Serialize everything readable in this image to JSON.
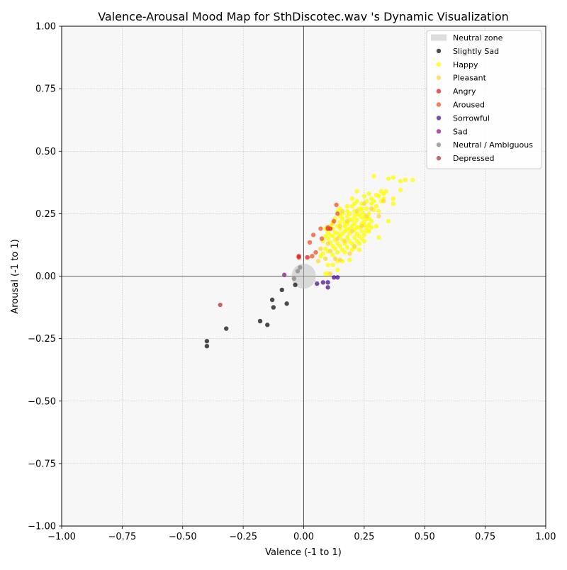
{
  "chart_data": {
    "type": "scatter",
    "title": "Valence-Arousal Mood Map for SthDiscotec.wav 's Dynamic Visualization",
    "xlabel": "Valence (-1 to 1)",
    "ylabel": "Arousal (-1 to 1)",
    "xlim": [
      -1,
      1
    ],
    "ylim": [
      -1,
      1
    ],
    "xticks": [
      -1.0,
      -0.75,
      -0.5,
      -0.25,
      0.0,
      0.25,
      0.5,
      0.75,
      1.0
    ],
    "yticks": [
      -1.0,
      -0.75,
      -0.5,
      -0.25,
      0.0,
      0.25,
      0.5,
      0.75,
      1.0
    ],
    "xtick_labels": [
      "−1.00",
      "−0.75",
      "−0.50",
      "−0.25",
      "0.00",
      "0.25",
      "0.50",
      "0.75",
      "1.00"
    ],
    "ytick_labels": [
      "−1.00",
      "−0.75",
      "−0.50",
      "−0.25",
      "0.00",
      "0.25",
      "0.50",
      "0.75",
      "1.00"
    ],
    "grid": true,
    "legend_position": "top-right",
    "neutral_zone": {
      "label": "Neutral zone",
      "center": [
        0,
        0
      ],
      "radius": 0.05,
      "color": "#bbbbbb"
    },
    "series": [
      {
        "name": "Slightly Sad",
        "color": "#111111",
        "points": [
          [
            -0.4,
            -0.26
          ],
          [
            -0.4,
            -0.28
          ],
          [
            -0.32,
            -0.21
          ],
          [
            -0.18,
            -0.18
          ],
          [
            -0.15,
            -0.195
          ],
          [
            -0.13,
            -0.095
          ],
          [
            -0.125,
            -0.125
          ],
          [
            -0.09,
            -0.055
          ],
          [
            -0.07,
            -0.11
          ],
          [
            -0.035,
            -0.035
          ]
        ]
      },
      {
        "name": "Happy",
        "color": "#ffff00",
        "points": [
          [
            0.29,
            0.4
          ],
          [
            0.37,
            0.395
          ],
          [
            0.35,
            0.39
          ],
          [
            0.42,
            0.385
          ],
          [
            0.45,
            0.385
          ],
          [
            0.4,
            0.38
          ],
          [
            0.4,
            0.345
          ],
          [
            0.37,
            0.31
          ],
          [
            0.37,
            0.29
          ],
          [
            0.32,
            0.34
          ],
          [
            0.33,
            0.33
          ],
          [
            0.34,
            0.34
          ],
          [
            0.3,
            0.325
          ],
          [
            0.31,
            0.32
          ],
          [
            0.33,
            0.31
          ],
          [
            0.35,
            0.22
          ],
          [
            0.31,
            0.155
          ],
          [
            0.31,
            0.26
          ],
          [
            0.22,
            0.34
          ],
          [
            0.27,
            0.33
          ],
          [
            0.25,
            0.32
          ],
          [
            0.28,
            0.31
          ],
          [
            0.2,
            0.31
          ],
          [
            0.22,
            0.3
          ],
          [
            0.26,
            0.3
          ],
          [
            0.29,
            0.3
          ],
          [
            0.24,
            0.29
          ],
          [
            0.21,
            0.29
          ],
          [
            0.18,
            0.28
          ],
          [
            0.2,
            0.28
          ],
          [
            0.15,
            0.27
          ],
          [
            0.23,
            0.27
          ],
          [
            0.26,
            0.27
          ],
          [
            0.29,
            0.265
          ],
          [
            0.14,
            0.26
          ],
          [
            0.18,
            0.26
          ],
          [
            0.21,
            0.26
          ],
          [
            0.24,
            0.26
          ],
          [
            0.27,
            0.25
          ],
          [
            0.16,
            0.25
          ],
          [
            0.19,
            0.25
          ],
          [
            0.22,
            0.25
          ],
          [
            0.25,
            0.245
          ],
          [
            0.15,
            0.24
          ],
          [
            0.18,
            0.24
          ],
          [
            0.21,
            0.24
          ],
          [
            0.24,
            0.235
          ],
          [
            0.27,
            0.23
          ],
          [
            0.13,
            0.23
          ],
          [
            0.16,
            0.23
          ],
          [
            0.19,
            0.225
          ],
          [
            0.22,
            0.225
          ],
          [
            0.25,
            0.22
          ],
          [
            0.12,
            0.215
          ],
          [
            0.15,
            0.215
          ],
          [
            0.18,
            0.21
          ],
          [
            0.21,
            0.21
          ],
          [
            0.24,
            0.21
          ],
          [
            0.27,
            0.205
          ],
          [
            0.11,
            0.2
          ],
          [
            0.14,
            0.2
          ],
          [
            0.17,
            0.2
          ],
          [
            0.2,
            0.2
          ],
          [
            0.23,
            0.195
          ],
          [
            0.26,
            0.195
          ],
          [
            0.09,
            0.19
          ],
          [
            0.12,
            0.19
          ],
          [
            0.15,
            0.19
          ],
          [
            0.18,
            0.185
          ],
          [
            0.21,
            0.185
          ],
          [
            0.24,
            0.18
          ],
          [
            0.27,
            0.18
          ],
          [
            0.1,
            0.175
          ],
          [
            0.13,
            0.175
          ],
          [
            0.16,
            0.17
          ],
          [
            0.19,
            0.17
          ],
          [
            0.22,
            0.17
          ],
          [
            0.25,
            0.165
          ],
          [
            0.09,
            0.16
          ],
          [
            0.12,
            0.16
          ],
          [
            0.15,
            0.16
          ],
          [
            0.18,
            0.155
          ],
          [
            0.21,
            0.155
          ],
          [
            0.24,
            0.15
          ],
          [
            0.1,
            0.15
          ],
          [
            0.13,
            0.145
          ],
          [
            0.16,
            0.145
          ],
          [
            0.19,
            0.14
          ],
          [
            0.22,
            0.14
          ],
          [
            0.08,
            0.14
          ],
          [
            0.11,
            0.135
          ],
          [
            0.14,
            0.13
          ],
          [
            0.17,
            0.13
          ],
          [
            0.2,
            0.13
          ],
          [
            0.23,
            0.13
          ],
          [
            0.12,
            0.12
          ],
          [
            0.15,
            0.12
          ],
          [
            0.18,
            0.115
          ],
          [
            0.21,
            0.115
          ],
          [
            0.09,
            0.11
          ],
          [
            0.13,
            0.11
          ],
          [
            0.16,
            0.105
          ],
          [
            0.2,
            0.105
          ],
          [
            0.23,
            0.105
          ],
          [
            0.1,
            0.1
          ],
          [
            0.14,
            0.095
          ],
          [
            0.17,
            0.095
          ],
          [
            0.08,
            0.09
          ],
          [
            0.12,
            0.085
          ],
          [
            0.07,
            0.08
          ],
          [
            0.19,
            0.065
          ],
          [
            0.14,
            0.06
          ],
          [
            0.16,
            0.06
          ],
          [
            0.1,
            0.045
          ],
          [
            0.12,
            0.045
          ],
          [
            0.14,
            0.025
          ],
          [
            0.09,
            0.01
          ],
          [
            0.1,
            0.01
          ],
          [
            0.26,
            0.23
          ],
          [
            0.28,
            0.22
          ],
          [
            0.3,
            0.2
          ],
          [
            0.25,
            0.14
          ],
          [
            0.23,
            0.16
          ],
          [
            0.28,
            0.195
          ],
          [
            0.26,
            0.18
          ],
          [
            0.2,
            0.225
          ],
          [
            0.17,
            0.215
          ],
          [
            0.23,
            0.245
          ],
          [
            0.3,
            0.28
          ],
          [
            0.32,
            0.3
          ],
          [
            0.28,
            0.29
          ],
          [
            0.24,
            0.27
          ],
          [
            0.19,
            0.19
          ],
          [
            0.22,
            0.195
          ],
          [
            0.25,
            0.205
          ],
          [
            0.17,
            0.18
          ],
          [
            0.14,
            0.17
          ],
          [
            0.11,
            0.165
          ]
        ]
      },
      {
        "name": "Pleasant",
        "color": "#fdd835",
        "points": [
          [
            0.12,
            0.21
          ],
          [
            0.15,
            0.2
          ],
          [
            0.18,
            0.22
          ],
          [
            0.2,
            0.18
          ],
          [
            0.22,
            0.26
          ],
          [
            0.26,
            0.24
          ],
          [
            0.14,
            0.15
          ],
          [
            0.17,
            0.14
          ],
          [
            0.21,
            0.12
          ],
          [
            0.11,
            0.1
          ],
          [
            0.09,
            0.07
          ],
          [
            0.06,
            0.06
          ],
          [
            0.13,
            0.07
          ],
          [
            0.19,
            0.09
          ],
          [
            0.24,
            0.2
          ],
          [
            0.28,
            0.27
          ],
          [
            0.31,
            0.24
          ],
          [
            0.33,
            0.3
          ],
          [
            0.16,
            0.26
          ],
          [
            0.1,
            0.13
          ],
          [
            0.07,
            0.11
          ],
          [
            0.11,
            0.01
          ],
          [
            0.15,
            0.065
          ],
          [
            0.25,
            0.29
          ]
        ]
      },
      {
        "name": "Angry",
        "color": "#e81c1c",
        "points": [
          [
            -0.02,
            0.08
          ],
          [
            -0.02,
            0.075
          ],
          [
            0.015,
            0.075
          ],
          [
            0.1,
            0.19
          ],
          [
            0.11,
            0.19
          ]
        ]
      },
      {
        "name": "Aroused",
        "color": "#f4511e",
        "points": [
          [
            0.135,
            0.285
          ],
          [
            0.14,
            0.25
          ],
          [
            0.125,
            0.22
          ],
          [
            0.07,
            0.19
          ],
          [
            0.1,
            0.195
          ],
          [
            0.04,
            0.165
          ],
          [
            0.075,
            0.15
          ],
          [
            0.025,
            0.135
          ],
          [
            0.05,
            0.095
          ],
          [
            0.035,
            0.08
          ]
        ]
      },
      {
        "name": "Sorrowful",
        "color": "#4a148c",
        "points": [
          [
            0.125,
            -0.005
          ],
          [
            0.14,
            -0.005
          ],
          [
            0.055,
            -0.03
          ],
          [
            0.08,
            -0.025
          ],
          [
            0.1,
            -0.025
          ],
          [
            0.1,
            -0.045
          ]
        ]
      },
      {
        "name": "Sad",
        "color": "#8e1a8e",
        "points": [
          [
            -0.08,
            0.005
          ]
        ]
      },
      {
        "name": "Neutral / Ambiguous",
        "color": "#888888",
        "points": [
          [
            -0.015,
            0.035
          ],
          [
            -0.025,
            0.02
          ],
          [
            -0.04,
            -0.01
          ]
        ]
      },
      {
        "name": "Depressed",
        "color": "#b33a3a",
        "points": [
          [
            -0.345,
            -0.115
          ]
        ]
      }
    ]
  }
}
